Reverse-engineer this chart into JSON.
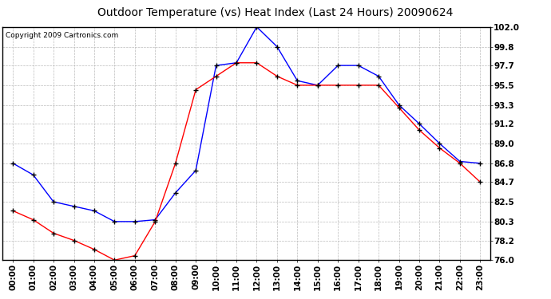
{
  "title": "Outdoor Temperature (vs) Heat Index (Last 24 Hours) 20090624",
  "copyright": "Copyright 2009 Cartronics.com",
  "hours": [
    "00:00",
    "01:00",
    "02:00",
    "03:00",
    "04:00",
    "05:00",
    "06:00",
    "07:00",
    "08:00",
    "09:00",
    "10:00",
    "11:00",
    "12:00",
    "13:00",
    "14:00",
    "15:00",
    "16:00",
    "17:00",
    "18:00",
    "19:00",
    "20:00",
    "21:00",
    "22:00",
    "23:00"
  ],
  "temp": [
    86.8,
    85.5,
    82.5,
    82.0,
    81.5,
    80.3,
    80.3,
    80.5,
    83.5,
    86.0,
    97.7,
    98.0,
    102.0,
    99.8,
    96.0,
    95.5,
    97.7,
    97.7,
    96.5,
    93.3,
    91.2,
    89.0,
    87.0,
    86.8
  ],
  "heat_index": [
    81.5,
    80.5,
    79.0,
    78.2,
    77.2,
    76.0,
    76.5,
    80.3,
    86.8,
    95.0,
    96.5,
    98.0,
    98.0,
    96.5,
    95.5,
    95.5,
    95.5,
    95.5,
    95.5,
    93.0,
    90.5,
    88.5,
    86.8,
    84.7
  ],
  "ylim": [
    76.0,
    102.0
  ],
  "yticks": [
    76.0,
    78.2,
    80.3,
    82.5,
    84.7,
    86.8,
    89.0,
    91.2,
    93.3,
    95.5,
    97.7,
    99.8,
    102.0
  ],
  "temp_color": "#0000ff",
  "heat_color": "#ff0000",
  "bg_color": "#ffffff",
  "grid_color": "#bbbbbb",
  "title_fontsize": 10,
  "copyright_fontsize": 6.5,
  "tick_fontsize": 7.5
}
